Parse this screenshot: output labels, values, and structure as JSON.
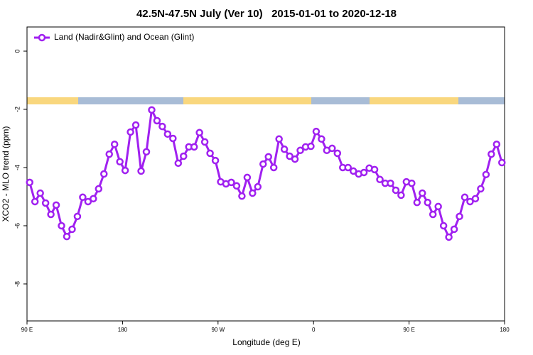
{
  "chart_data": {
    "type": "line",
    "title": "42.5N-47.5N July (Ver 10)   2015-01-01 to 2020-12-18",
    "x_label": "Longitude (deg E)",
    "y_label": "XCO2 - MLO trend (ppm)",
    "xlim": [
      90,
      540
    ],
    "ylim": [
      -9.27,
      0.83
    ],
    "xticks": [
      {
        "value": 90,
        "label": "90 E"
      },
      180,
      {
        "value": 270,
        "label": "90 W"
      },
      {
        "value": 360,
        "label": "0"
      },
      {
        "value": 450,
        "label": "90 E"
      },
      {
        "value": 540,
        "label": "180"
      }
    ],
    "yticks": [
      0,
      -2,
      -4,
      -6,
      -8
    ],
    "grid": false,
    "legend": "upper left",
    "x": [
      92.5,
      97.5,
      102.5,
      107.5,
      112.5,
      117.5,
      122.5,
      127.5,
      132.5,
      137.5,
      142.5,
      147.5,
      152.5,
      157.5,
      162.5,
      167.5,
      172.5,
      177.5,
      182.5,
      187.5,
      192.5,
      197.5,
      202.5,
      207.5,
      212.5,
      217.5,
      222.5,
      227.5,
      232.5,
      237.5,
      242.5,
      247.5,
      252.5,
      257.5,
      262.5,
      267.5,
      272.5,
      277.5,
      282.5,
      287.5,
      292.5,
      297.5,
      302.5,
      307.5,
      312.5,
      317.5,
      322.5,
      327.5,
      332.5,
      337.5,
      342.5,
      347.5,
      352.5,
      357.5,
      362.5,
      367.5,
      372.5,
      377.5,
      382.5,
      387.5,
      392.5,
      397.5,
      402.5,
      407.5,
      412.5,
      417.5,
      422.5,
      427.5,
      432.5,
      437.5,
      442.5,
      447.5,
      452.5,
      457.5,
      462.5,
      467.5,
      472.5,
      477.5,
      482.5,
      487.5,
      492.5,
      497.5,
      502.5,
      507.5,
      512.5,
      517.5,
      522.5,
      527.5,
      532.5,
      537.5
    ],
    "series": [
      {
        "name": "Land (Nadir&Glint) and Ocean (Glint)",
        "color": "#a020f0",
        "values": [
          -4.51,
          -5.17,
          -4.88,
          -5.22,
          -5.61,
          -5.29,
          -6.0,
          -6.37,
          -6.12,
          -5.68,
          -5.02,
          -5.17,
          -5.07,
          -4.73,
          -4.22,
          -3.54,
          -3.2,
          -3.8,
          -4.1,
          -2.78,
          -2.54,
          -4.12,
          -3.46,
          -2.02,
          -2.39,
          -2.59,
          -2.85,
          -3.0,
          -3.85,
          -3.61,
          -3.29,
          -3.29,
          -2.8,
          -3.12,
          -3.51,
          -3.76,
          -4.49,
          -4.56,
          -4.51,
          -4.63,
          -4.98,
          -4.34,
          -4.88,
          -4.66,
          -3.88,
          -3.63,
          -4.0,
          -3.02,
          -3.37,
          -3.61,
          -3.71,
          -3.41,
          -3.29,
          -3.27,
          -2.76,
          -3.02,
          -3.41,
          -3.34,
          -3.51,
          -4.0,
          -4.0,
          -4.12,
          -4.22,
          -4.17,
          -4.02,
          -4.07,
          -4.41,
          -4.54,
          -4.54,
          -4.78,
          -4.95,
          -4.49,
          -4.54,
          -5.2,
          -4.88,
          -5.2,
          -5.61,
          -5.34,
          -6.0,
          -6.39,
          -6.12,
          -5.68,
          -5.02,
          -5.17,
          -5.07,
          -4.73,
          -4.24,
          -3.54,
          -3.2,
          -3.83
        ]
      }
    ]
  }
}
